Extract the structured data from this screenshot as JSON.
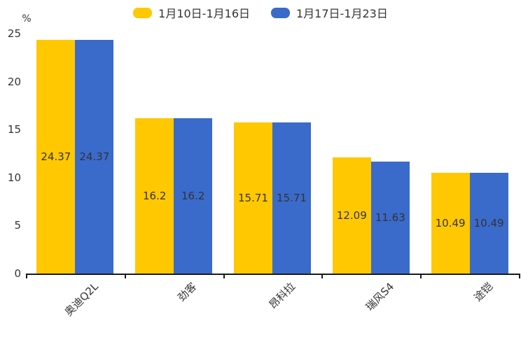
{
  "page": {
    "background_color": "#ffffff",
    "text_color": "#333333",
    "axis_color": "#1a1a1a"
  },
  "legend": {
    "position": "top-center",
    "items": [
      {
        "label": "1月10日-1月16日",
        "color": "#FFC800"
      },
      {
        "label": "1月17日-1月23日",
        "color": "#3A6BCB"
      }
    ]
  },
  "chart_data": {
    "type": "bar",
    "title": "",
    "xlabel": "",
    "ylabel": "%",
    "categories": [
      "奥迪Q2L",
      "劲客",
      "昂科拉",
      "瑞风S4",
      "途铠"
    ],
    "series": [
      {
        "name": "1月10日-1月16日",
        "color": "#FFC800",
        "values": [
          24.37,
          16.2,
          15.71,
          12.09,
          10.49
        ]
      },
      {
        "name": "1月17日-1月23日",
        "color": "#3A6BCB",
        "values": [
          24.37,
          16.2,
          15.71,
          11.63,
          10.49
        ]
      }
    ],
    "bar_labels": [
      [
        "24.37",
        "16.2",
        "15.71",
        "12.09",
        "10.49"
      ],
      [
        "24.37",
        "16.2",
        "15.71",
        "11.63",
        "10.49"
      ]
    ],
    "ylim": [
      0,
      25
    ],
    "yticks": [
      0,
      5,
      10,
      15,
      20,
      25
    ],
    "grid": false,
    "legend_position": "top",
    "category_label_rotation_deg": -45,
    "bar_label_color": "#333333"
  }
}
